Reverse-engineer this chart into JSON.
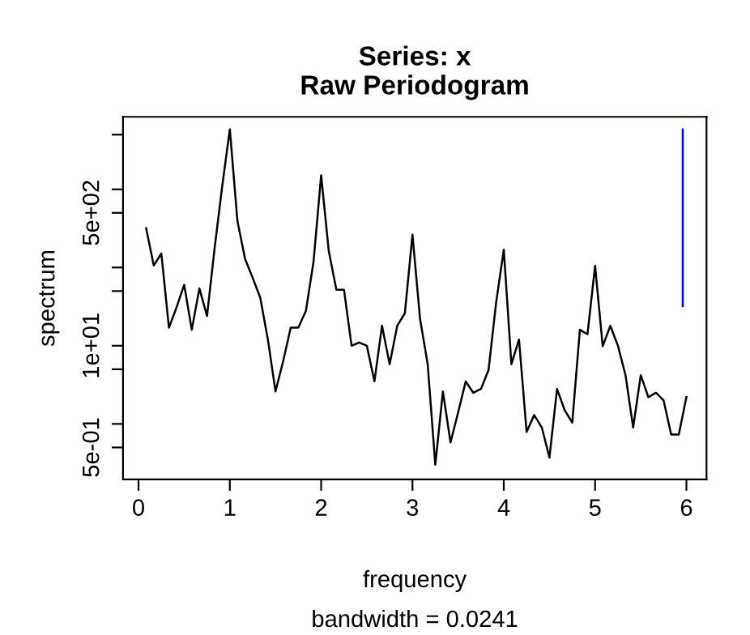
{
  "chart_data": {
    "type": "line",
    "title": "Series: x\nRaw Periodogram",
    "xlabel": "frequency",
    "ylabel": "spectrum",
    "annotations": [
      "bandwidth = 0.0241"
    ],
    "log": "y",
    "grid": false,
    "legend": false,
    "marker": "none",
    "line_style": "solid",
    "xlim": [
      -0.17,
      6.22
    ],
    "xticks": [
      0,
      1,
      2,
      3,
      4,
      5,
      6
    ],
    "ylim": [
      0.195,
      8450
    ],
    "yticks": [
      {
        "value": 5000,
        "label": null
      },
      {
        "value": 1000,
        "label": null
      },
      {
        "value": 500,
        "label": "5e+02"
      },
      {
        "value": 100,
        "label": null
      },
      {
        "value": 50,
        "label": null
      },
      {
        "value": 10,
        "label": "1e+01"
      },
      {
        "value": 5,
        "label": null
      },
      {
        "value": 1,
        "label": null
      },
      {
        "value": 0.5,
        "label": "5e-01"
      }
    ],
    "series": [
      {
        "color": "#000000",
        "x": [
          0.0833,
          0.1667,
          0.25,
          0.3333,
          0.4167,
          0.5,
          0.5833,
          0.6667,
          0.75,
          0.8333,
          0.9167,
          1.0,
          1.0833,
          1.1667,
          1.25,
          1.3333,
          1.4167,
          1.5,
          1.5833,
          1.6667,
          1.75,
          1.8333,
          1.9167,
          2.0,
          2.0833,
          2.1667,
          2.25,
          2.3333,
          2.4167,
          2.5,
          2.5833,
          2.6667,
          2.75,
          2.8333,
          2.9167,
          3.0,
          3.0833,
          3.1667,
          3.25,
          3.3333,
          3.4167,
          3.5,
          3.5833,
          3.6667,
          3.75,
          3.8333,
          3.9167,
          4.0,
          4.0833,
          4.1667,
          4.25,
          4.3333,
          4.4167,
          4.5,
          4.5833,
          4.6667,
          4.75,
          4.8333,
          4.9167,
          5.0,
          5.0833,
          5.1667,
          5.25,
          5.3333,
          5.4167,
          5.5,
          5.5833,
          5.6667,
          5.75,
          5.8333,
          5.9167,
          6.0
        ],
        "values": [
          318,
          106,
          151,
          17,
          31,
          60,
          16,
          54,
          24,
          177,
          1100,
          5850,
          392,
          129,
          74,
          41,
          12,
          2.6,
          6.3,
          17,
          17,
          28,
          119,
          1510,
          163,
          52,
          52,
          10,
          11,
          10,
          3.5,
          18,
          5.8,
          18,
          26,
          263,
          22,
          5.8,
          0.3,
          2.6,
          0.58,
          1.4,
          3.5,
          2.5,
          2.8,
          4.9,
          36,
          169,
          5.8,
          12,
          0.79,
          1.3,
          0.9,
          0.37,
          2.8,
          1.5,
          1.04,
          16,
          14,
          105,
          9.8,
          18,
          10,
          4.2,
          0.9,
          4.2,
          2.2,
          2.5,
          2.0,
          0.73,
          0.73,
          2.2
        ]
      },
      {
        "color": "#0000ff",
        "x": [
          5.96,
          5.96,
          5.96
        ],
        "values": [
          5850,
          135,
          32
        ]
      }
    ]
  }
}
